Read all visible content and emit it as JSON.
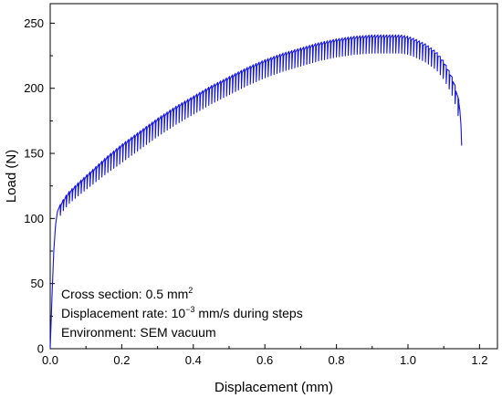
{
  "chart_data": {
    "type": "line",
    "xlabel": "Displacement (mm)",
    "ylabel": "Load (N)",
    "xlim": [
      0,
      1.25
    ],
    "ylim": [
      0,
      265
    ],
    "x_ticks": [
      0.0,
      0.2,
      0.4,
      0.6,
      0.8,
      1.0,
      1.2
    ],
    "x_tick_labels": [
      "0.0",
      "0.2",
      "0.4",
      "0.6",
      "0.8",
      "1.0",
      "1.2"
    ],
    "y_ticks": [
      0,
      50,
      100,
      150,
      200,
      250
    ],
    "y_tick_labels": [
      "0",
      "50",
      "100",
      "150",
      "200",
      "250"
    ],
    "grid": false,
    "line_color": "#1515d6",
    "series": [
      {
        "envelope": {
          "x": [
            0.0,
            0.005,
            0.01,
            0.015,
            0.02,
            0.03,
            0.05,
            0.08,
            0.12,
            0.16,
            0.2,
            0.25,
            0.3,
            0.35,
            0.4,
            0.45,
            0.5,
            0.55,
            0.6,
            0.65,
            0.7,
            0.75,
            0.8,
            0.85,
            0.9,
            0.95,
            0.98,
            1.0,
            1.02,
            1.05,
            1.08,
            1.1,
            1.12,
            1.13,
            1.14
          ],
          "y": [
            0,
            40,
            75,
            95,
            105,
            112,
            120,
            128,
            138,
            148,
            157,
            167,
            177,
            186,
            194,
            202,
            209,
            216,
            222,
            227,
            231,
            235,
            238,
            240,
            241,
            241,
            241,
            240,
            238,
            234,
            228,
            221,
            211,
            204,
            193
          ]
        },
        "step_drop": 14,
        "step_count": 135,
        "tail": {
          "x": [
            1.14,
            1.145,
            1.148,
            1.15
          ],
          "y": [
            193,
            183,
            172,
            156
          ]
        }
      }
    ],
    "annotations": [
      {
        "text": "Cross section: 0.5 mm",
        "superscript": "2",
        "suffix": ""
      },
      {
        "text": "Displacement rate: 10",
        "superscript": "−3",
        "suffix": " mm/s during steps"
      },
      {
        "text": "Environment: SEM vacuum",
        "superscript": "",
        "suffix": ""
      }
    ]
  }
}
